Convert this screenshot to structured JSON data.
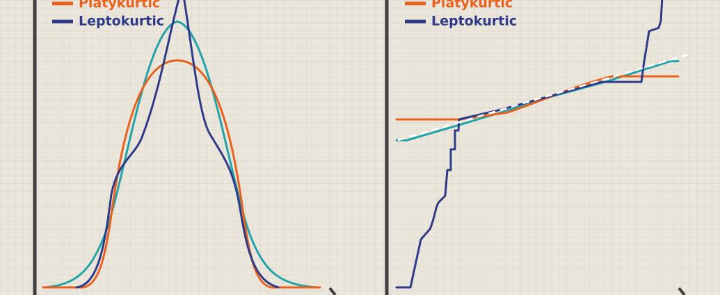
{
  "left_panel": {
    "legend": [
      {
        "label": "Platykurtic"
      },
      {
        "label": "Leptokurtic"
      }
    ]
  },
  "right_panel": {
    "legend": [
      {
        "label": "Platykurtic"
      },
      {
        "label": "Leptokurtic"
      }
    ]
  }
}
